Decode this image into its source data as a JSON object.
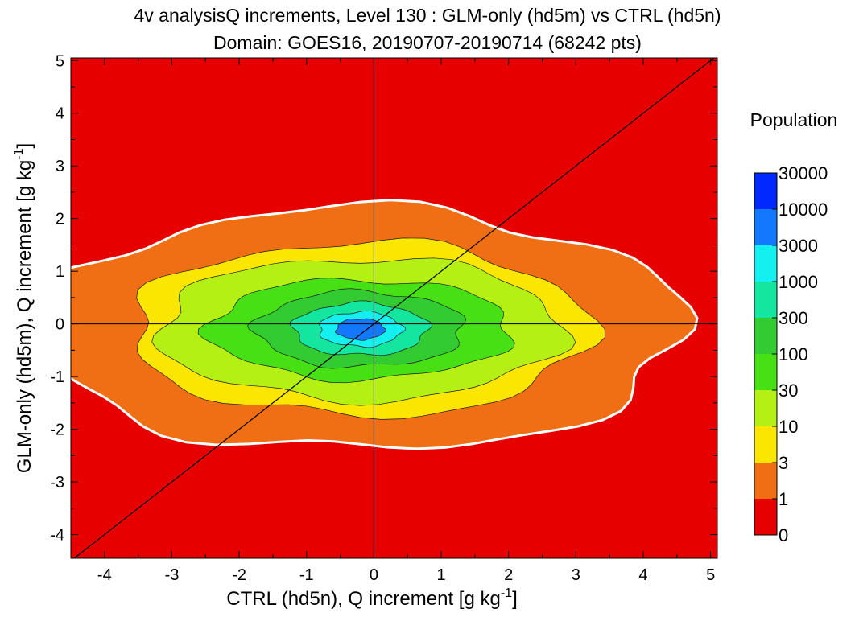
{
  "chart_data": {
    "type": "heatmap",
    "title_line1": "4v analysisQ increments, Level 130 : GLM-only (hd5m) vs CTRL (hd5n)",
    "title_line2": "Domain: GOES16, 20190707-20190714 (68242 pts)",
    "xlabel_main": "CTRL (hd5n), Q increment [g kg",
    "ylabel_main": "GLM-only (hd5m), Q increment [g kg",
    "unit_exp": "-1",
    "unit_close": "]",
    "xlim": [
      -4.5,
      5.1
    ],
    "ylim": [
      -4.45,
      5.05
    ],
    "xticks": [
      -4,
      -3,
      -2,
      -1,
      0,
      1,
      2,
      3,
      4,
      5
    ],
    "xtick_labels": [
      "-4",
      "-3",
      "-2",
      "-1",
      "0",
      "1",
      "2",
      "3",
      "4",
      "5"
    ],
    "yticks": [
      -4,
      -3,
      -2,
      -1,
      0,
      1,
      2,
      3,
      4,
      5
    ],
    "ytick_labels": [
      "-4",
      "-3",
      "-2",
      "-1",
      "0",
      "1",
      "2",
      "3",
      "4",
      "5"
    ],
    "colorbar_title": "Population",
    "levels": [
      0,
      1,
      3,
      10,
      30,
      100,
      300,
      1000,
      3000,
      10000,
      30000
    ],
    "level_labels": [
      "0",
      "1",
      "3",
      "10",
      "30",
      "100",
      "300",
      "1000",
      "3000",
      "10000",
      "30000"
    ],
    "level_colors": [
      "#e60000",
      "#f06e14",
      "#fae600",
      "#b4f014",
      "#46e014",
      "#32cc32",
      "#14e6a0",
      "#14f0f0",
      "#1478ff",
      "#0028ff"
    ],
    "reference_lines": [
      "x=0",
      "y=0",
      "y=x"
    ],
    "center_estimate": {
      "x": -0.2,
      "y": -0.1
    },
    "contour_half_widths": [
      {
        "level": 1,
        "rx": 4.8,
        "ry": 2.3
      },
      {
        "level": 3,
        "rx": 3.4,
        "ry": 1.65
      },
      {
        "level": 10,
        "rx": 3.0,
        "ry": 1.35
      },
      {
        "level": 30,
        "rx": 2.25,
        "ry": 0.95
      },
      {
        "level": 100,
        "rx": 1.55,
        "ry": 0.72
      },
      {
        "level": 300,
        "rx": 1.0,
        "ry": 0.5
      },
      {
        "level": 1000,
        "rx": 0.62,
        "ry": 0.33
      },
      {
        "level": 3000,
        "rx": 0.36,
        "ry": 0.2
      }
    ]
  }
}
